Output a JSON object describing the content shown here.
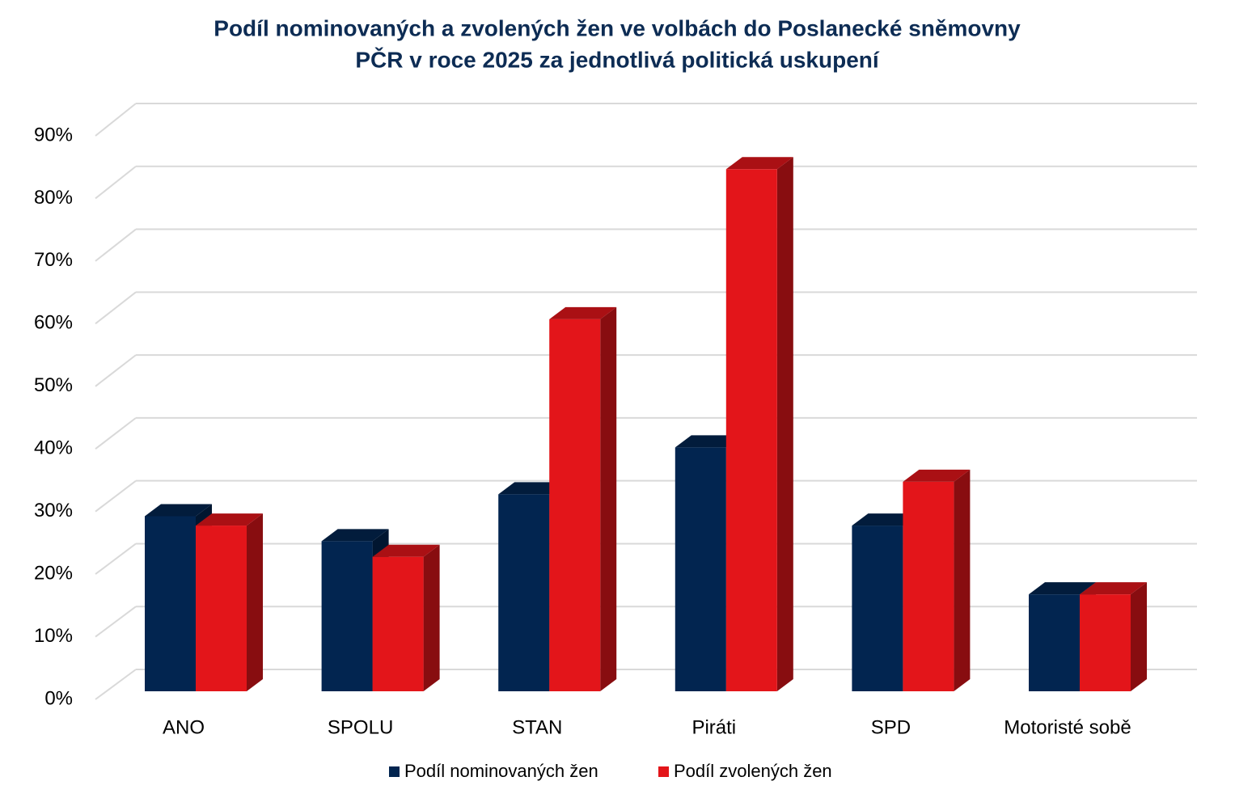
{
  "chart_data": {
    "type": "bar3d",
    "title": [
      "Podíl nominovaných a zvolených žen ve volbách do Poslanecké sněmovny",
      "PČR v roce 2025 za jednotlivá politická uskupení"
    ],
    "categories": [
      "ANO",
      "SPOLU",
      "STAN",
      "Piráti",
      "SPD",
      "Motoristé sobě"
    ],
    "series": [
      {
        "name": "Podíl nominovaných žen",
        "color": "#022550",
        "values": [
          28,
          24,
          31.5,
          39,
          26.5,
          15.5
        ]
      },
      {
        "name": "Podíl zvolených žen",
        "color": "#e3151a",
        "values": [
          26.5,
          21.5,
          59.5,
          83.5,
          33.5,
          15.5
        ]
      }
    ],
    "ylim": [
      0,
      90
    ],
    "yticks": [
      {
        "value": 0,
        "label": "0%"
      },
      {
        "value": 10,
        "label": "10%"
      },
      {
        "value": 20,
        "label": "20%"
      },
      {
        "value": 30,
        "label": "30%"
      },
      {
        "value": 40,
        "label": "40%"
      },
      {
        "value": 50,
        "label": "50%"
      },
      {
        "value": 60,
        "label": "60%"
      },
      {
        "value": 70,
        "label": "70%"
      },
      {
        "value": 80,
        "label": "80%"
      },
      {
        "value": 90,
        "label": "90%"
      }
    ],
    "grid": true,
    "legend": "bottom"
  }
}
